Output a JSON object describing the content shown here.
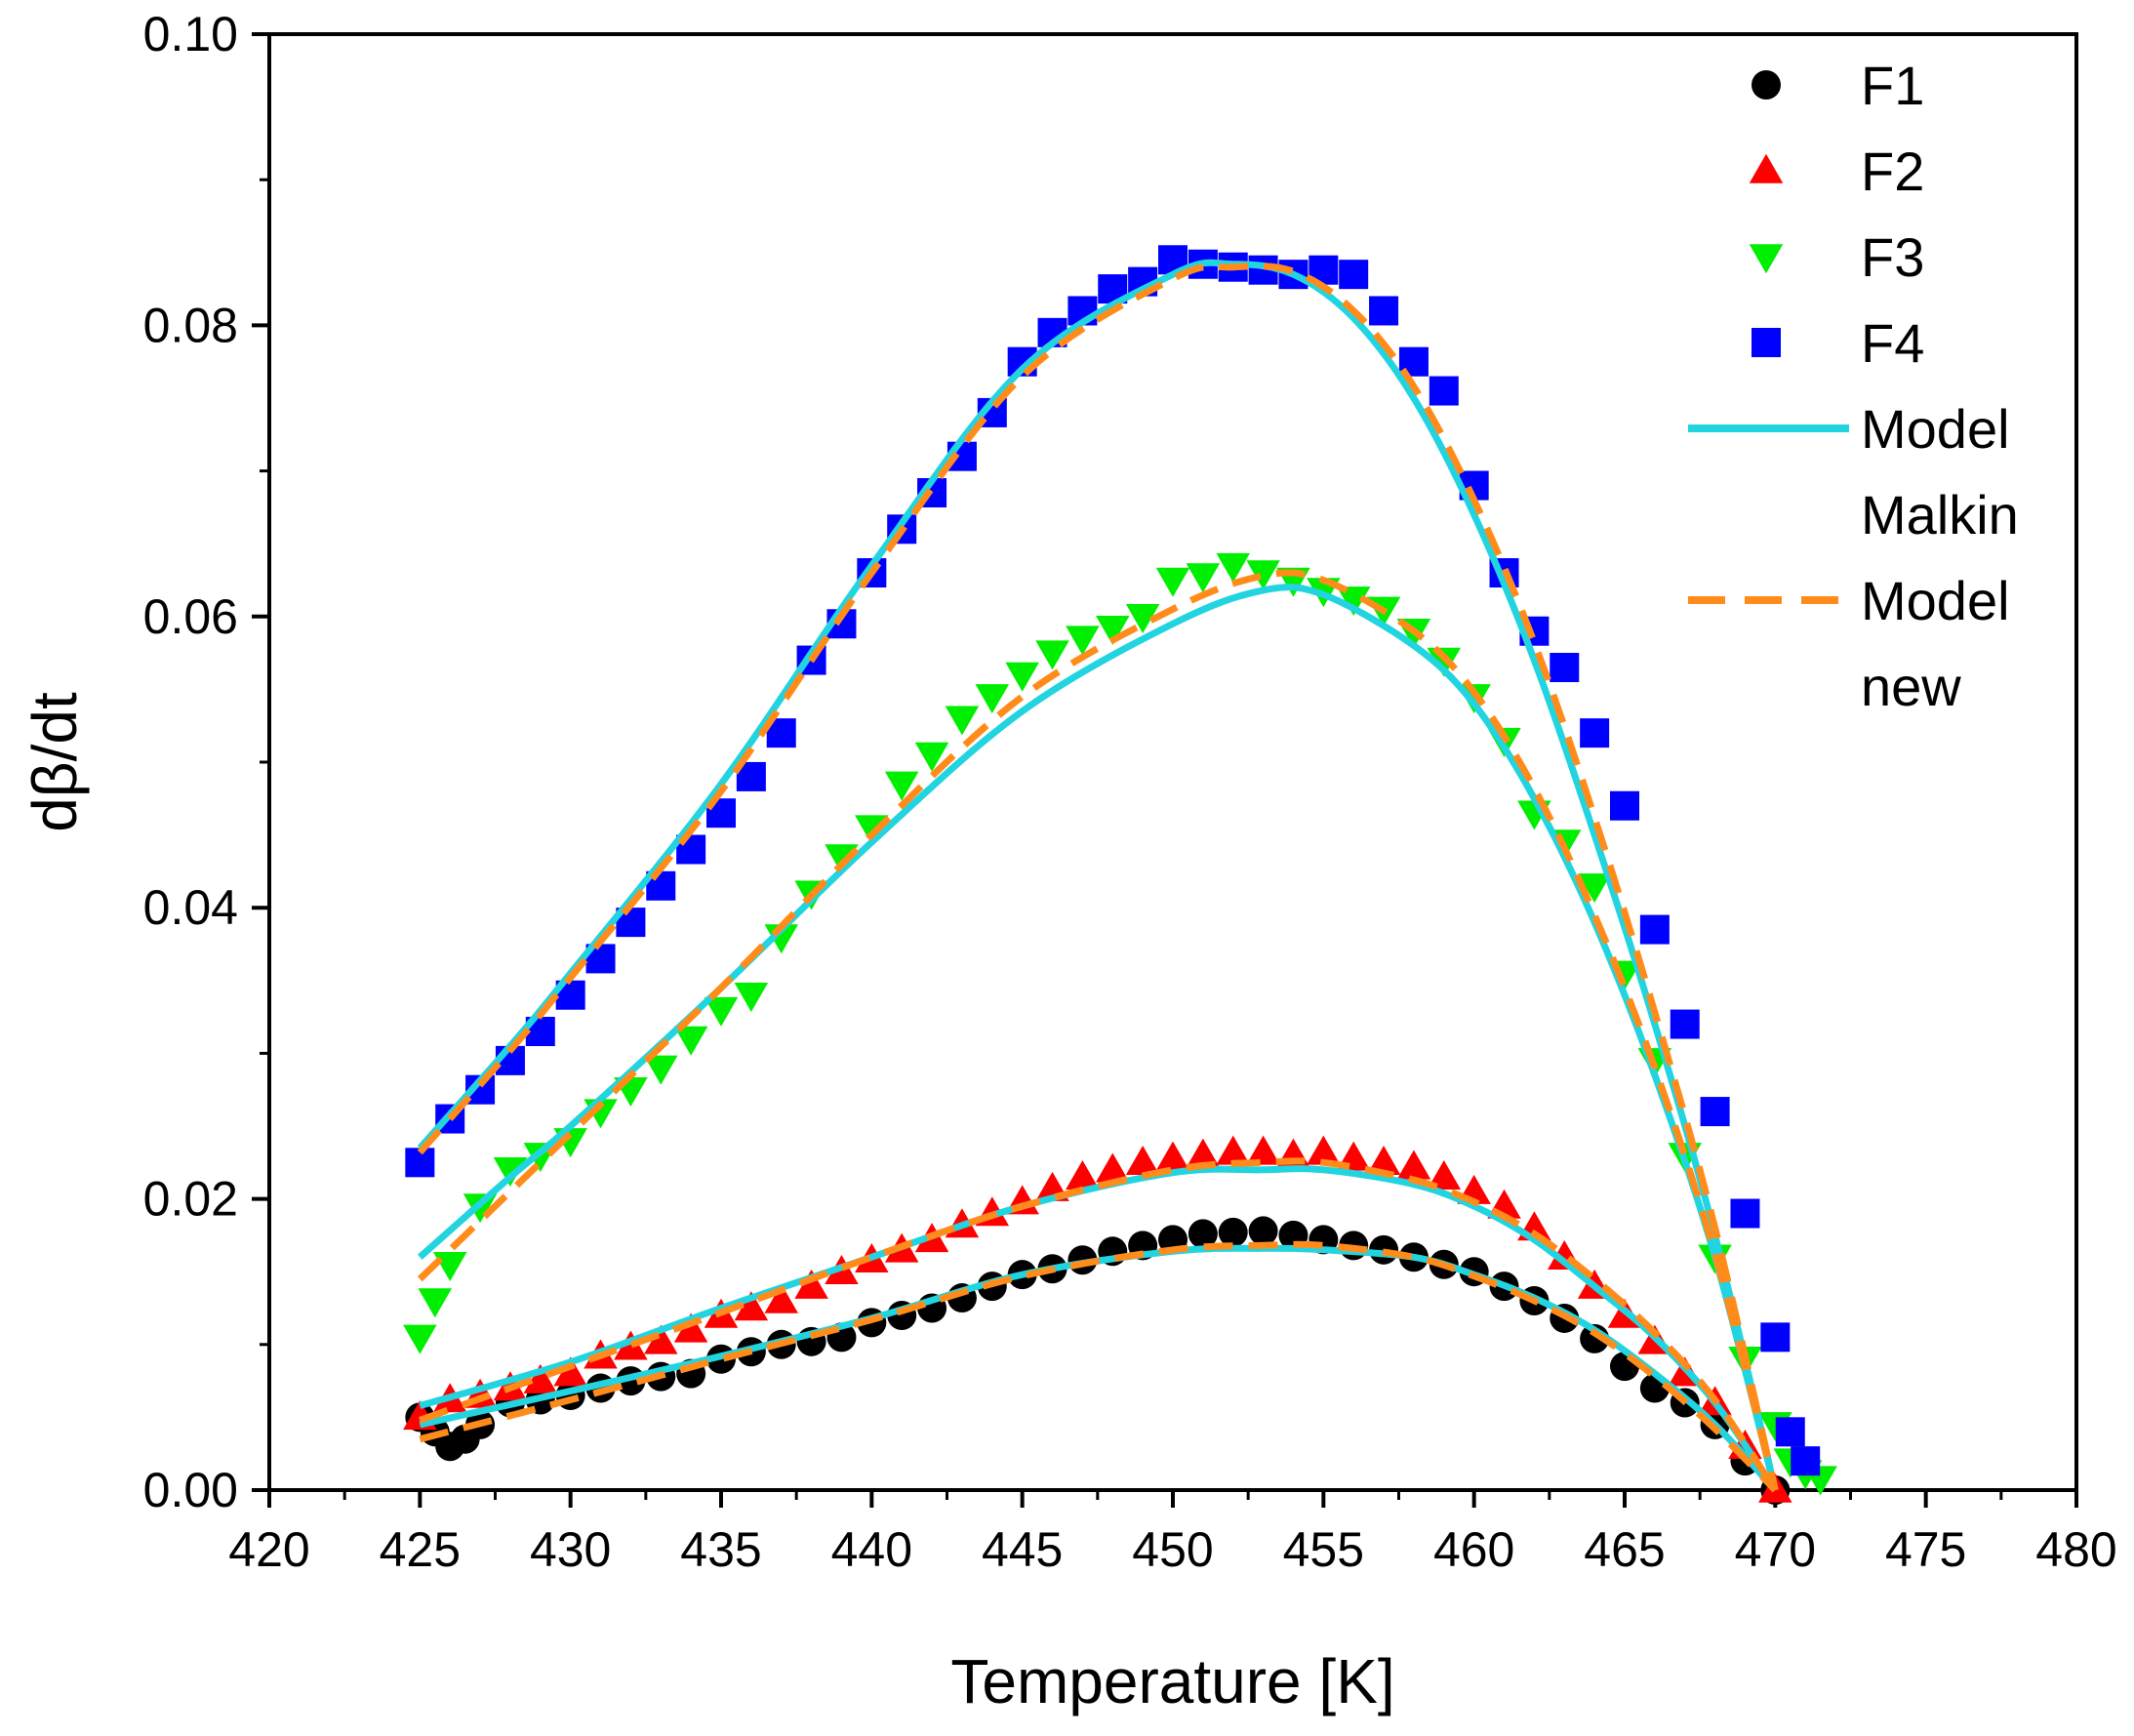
{
  "chart_data": {
    "type": "scatter",
    "title": "",
    "xlabel": "Temperature [K]",
    "ylabel": "dβ/dt",
    "xlim": [
      420,
      480
    ],
    "ylim": [
      0,
      0.1
    ],
    "x_ticks": [
      420,
      425,
      430,
      435,
      440,
      445,
      450,
      455,
      460,
      465,
      470,
      475,
      480
    ],
    "y_ticks": [
      0.0,
      0.02,
      0.04,
      0.06,
      0.08,
      0.1
    ],
    "x_tick_labels": [
      "420",
      "425",
      "430",
      "435",
      "440",
      "445",
      "450",
      "455",
      "460",
      "465",
      "470",
      "475",
      "480"
    ],
    "y_tick_labels": [
      "0.00",
      "0.02",
      "0.04",
      "0.06",
      "0.08",
      "0.10"
    ],
    "legend_position": "top-right",
    "legend": [
      {
        "label": "F1",
        "kind": "marker",
        "marker": "circle",
        "color": "#000000"
      },
      {
        "label": "F2",
        "kind": "marker",
        "marker": "triangle-up",
        "color": "#ff0000"
      },
      {
        "label": "F3",
        "kind": "marker",
        "marker": "triangle-down",
        "color": "#00ee00"
      },
      {
        "label": "F4",
        "kind": "marker",
        "marker": "square",
        "color": "#0000ff"
      },
      {
        "label_lines": [
          "Model",
          "Malkin"
        ],
        "kind": "line",
        "dash": "solid",
        "color": "#22d4e0"
      },
      {
        "label_lines": [
          "Model",
          "new"
        ],
        "kind": "line",
        "dash": "dashed",
        "color": "#ff8c1a"
      }
    ],
    "series": [
      {
        "name": "F1",
        "marker": "circle",
        "color": "#000000",
        "x": [
          425,
          425.5,
          426,
          426.5,
          427,
          428,
          429,
          430,
          431,
          432,
          433,
          434,
          435,
          436,
          437,
          438,
          439,
          440,
          441,
          442,
          443,
          444,
          445,
          446,
          447,
          448,
          449,
          450,
          451,
          452,
          453,
          454,
          455,
          456,
          457,
          458,
          459,
          460,
          461,
          462,
          463,
          464,
          465,
          466,
          467,
          468,
          469,
          470
        ],
        "y": [
          0.005,
          0.004,
          0.003,
          0.0035,
          0.0045,
          0.006,
          0.0062,
          0.0065,
          0.007,
          0.0075,
          0.0078,
          0.008,
          0.009,
          0.0095,
          0.01,
          0.0102,
          0.0105,
          0.0115,
          0.012,
          0.0125,
          0.0132,
          0.014,
          0.0148,
          0.0152,
          0.0158,
          0.0164,
          0.0168,
          0.0172,
          0.0176,
          0.0177,
          0.0178,
          0.0175,
          0.0172,
          0.0168,
          0.0165,
          0.016,
          0.0155,
          0.015,
          0.014,
          0.013,
          0.0118,
          0.0104,
          0.0085,
          0.007,
          0.006,
          0.0045,
          0.002,
          0.0
        ]
      },
      {
        "name": "F2",
        "marker": "triangle-up",
        "color": "#ff0000",
        "x": [
          425,
          426,
          427,
          428,
          429,
          430,
          431,
          432,
          433,
          434,
          435,
          436,
          437,
          438,
          439,
          440,
          441,
          442,
          443,
          444,
          445,
          446,
          447,
          448,
          449,
          450,
          451,
          452,
          453,
          454,
          455,
          456,
          457,
          458,
          459,
          460,
          461,
          462,
          463,
          464,
          465,
          466,
          467,
          468,
          469,
          470
        ],
        "y": [
          0.005,
          0.0062,
          0.0065,
          0.007,
          0.0075,
          0.008,
          0.0092,
          0.0098,
          0.0102,
          0.011,
          0.012,
          0.0125,
          0.013,
          0.014,
          0.015,
          0.0158,
          0.0165,
          0.0172,
          0.0182,
          0.019,
          0.0198,
          0.0207,
          0.0215,
          0.022,
          0.0225,
          0.0228,
          0.023,
          0.0232,
          0.0232,
          0.023,
          0.0232,
          0.0228,
          0.0225,
          0.0222,
          0.0215,
          0.0205,
          0.0195,
          0.018,
          0.016,
          0.014,
          0.012,
          0.0102,
          0.008,
          0.006,
          0.003,
          0.0
        ]
      },
      {
        "name": "F3",
        "marker": "triangle-down",
        "color": "#00ee00",
        "x": [
          425,
          425.5,
          426,
          427,
          428,
          429,
          430,
          431,
          432,
          433,
          434,
          435,
          436,
          437,
          438,
          439,
          440,
          441,
          442,
          443,
          444,
          445,
          446,
          447,
          448,
          449,
          450,
          451,
          452,
          453,
          454,
          455,
          456,
          457,
          458,
          459,
          460,
          461,
          462,
          463,
          464,
          465,
          466,
          467,
          468,
          469,
          470,
          470.5,
          471,
          471.5
        ],
        "y": [
          0.0105,
          0.013,
          0.0155,
          0.0195,
          0.022,
          0.023,
          0.024,
          0.026,
          0.0275,
          0.029,
          0.031,
          0.033,
          0.034,
          0.038,
          0.041,
          0.0435,
          0.0455,
          0.0485,
          0.0505,
          0.053,
          0.0545,
          0.056,
          0.0575,
          0.0585,
          0.0592,
          0.06,
          0.0625,
          0.0628,
          0.0635,
          0.063,
          0.0625,
          0.0618,
          0.0612,
          0.0605,
          0.059,
          0.057,
          0.0545,
          0.0515,
          0.0465,
          0.0445,
          0.0415,
          0.0355,
          0.0295,
          0.023,
          0.016,
          0.009,
          0.0045,
          0.002,
          0.0012,
          0.0008
        ]
      },
      {
        "name": "F4",
        "marker": "square",
        "color": "#0000ff",
        "x": [
          425,
          426,
          427,
          428,
          429,
          430,
          431,
          432,
          433,
          434,
          435,
          436,
          437,
          438,
          439,
          440,
          441,
          442,
          443,
          444,
          445,
          446,
          447,
          448,
          449,
          450,
          451,
          452,
          453,
          454,
          455,
          456,
          457,
          458,
          459,
          460,
          461,
          462,
          463,
          464,
          465,
          466,
          467,
          468,
          469,
          470,
          470.5,
          471
        ],
        "y": [
          0.0225,
          0.0255,
          0.0275,
          0.0295,
          0.0315,
          0.034,
          0.0365,
          0.039,
          0.0415,
          0.044,
          0.0465,
          0.049,
          0.052,
          0.057,
          0.0595,
          0.063,
          0.066,
          0.0685,
          0.071,
          0.074,
          0.0775,
          0.0795,
          0.081,
          0.0825,
          0.083,
          0.0845,
          0.0842,
          0.084,
          0.0838,
          0.0835,
          0.0838,
          0.0835,
          0.081,
          0.0775,
          0.0755,
          0.069,
          0.063,
          0.059,
          0.0565,
          0.052,
          0.047,
          0.0385,
          0.032,
          0.026,
          0.019,
          0.0105,
          0.004,
          0.002
        ]
      }
    ],
    "model_curves": [
      {
        "name": "Model Malkin",
        "style": "solid",
        "color": "#22d4e0",
        "curves": [
          {
            "for": "F1",
            "x": [
              425,
              430,
              435,
              440,
              445,
              450,
              453,
              455,
              458,
              460,
              462,
              464,
              466,
              468,
              470
            ],
            "y": [
              0.0045,
              0.0068,
              0.0092,
              0.0118,
              0.0148,
              0.0164,
              0.0166,
              0.0165,
              0.016,
              0.0148,
              0.0132,
              0.011,
              0.008,
              0.0045,
              0.0
            ]
          },
          {
            "for": "F2",
            "x": [
              425,
              430,
              435,
              440,
              445,
              450,
              453,
              455,
              458,
              460,
              462,
              464,
              466,
              468,
              470
            ],
            "y": [
              0.0058,
              0.0088,
              0.0125,
              0.016,
              0.0195,
              0.0218,
              0.022,
              0.022,
              0.021,
              0.0195,
              0.0172,
              0.014,
              0.0105,
              0.006,
              0.0
            ]
          },
          {
            "for": "F3",
            "x": [
              425,
              428,
              430,
              435,
              440,
              445,
              450,
              453,
              455,
              458,
              460,
              462,
              464,
              466,
              468,
              470
            ],
            "y": [
              0.016,
              0.0215,
              0.025,
              0.0345,
              0.0445,
              0.0535,
              0.0595,
              0.0618,
              0.0615,
              0.058,
              0.054,
              0.0475,
              0.039,
              0.0285,
              0.016,
              0.0
            ]
          },
          {
            "for": "F4",
            "x": [
              425,
              428,
              430,
              435,
              440,
              445,
              450,
              452,
              454,
              456,
              458,
              460,
              462,
              464,
              466,
              468,
              470
            ],
            "y": [
              0.0235,
              0.0305,
              0.0355,
              0.0485,
              0.0635,
              0.077,
              0.0835,
              0.0842,
              0.0835,
              0.0805,
              0.075,
              0.067,
              0.057,
              0.045,
              0.032,
              0.0175,
              0.0
            ]
          }
        ]
      },
      {
        "name": "Model new",
        "style": "dashed",
        "color": "#ff8c1a",
        "curves": [
          {
            "for": "F1",
            "x": [
              425,
              430,
              435,
              440,
              445,
              450,
              453,
              455,
              458,
              460,
              462,
              464,
              466,
              468,
              470
            ],
            "y": [
              0.0035,
              0.0062,
              0.009,
              0.0117,
              0.0147,
              0.0165,
              0.0168,
              0.0168,
              0.016,
              0.0147,
              0.013,
              0.0108,
              0.0078,
              0.0042,
              0.0
            ]
          },
          {
            "for": "F2",
            "x": [
              425,
              430,
              435,
              440,
              445,
              450,
              453,
              455,
              458,
              460,
              462,
              464,
              466,
              468,
              470
            ],
            "y": [
              0.0048,
              0.0085,
              0.0122,
              0.016,
              0.0195,
              0.022,
              0.0225,
              0.0225,
              0.0213,
              0.0198,
              0.0176,
              0.0145,
              0.0108,
              0.0062,
              0.0
            ]
          },
          {
            "for": "F3",
            "x": [
              425,
              428,
              430,
              435,
              440,
              445,
              450,
              453,
              455,
              458,
              460,
              462,
              464,
              466,
              468,
              470
            ],
            "y": [
              0.0145,
              0.0205,
              0.0245,
              0.0345,
              0.045,
              0.0545,
              0.0605,
              0.0628,
              0.0625,
              0.059,
              0.0548,
              0.0482,
              0.0395,
              0.029,
              0.0162,
              0.0
            ]
          },
          {
            "for": "F4",
            "x": [
              425,
              428,
              430,
              435,
              440,
              445,
              450,
              452,
              454,
              456,
              458,
              460,
              462,
              464,
              466,
              468,
              470
            ],
            "y": [
              0.0232,
              0.0302,
              0.0352,
              0.048,
              0.063,
              0.0765,
              0.0832,
              0.084,
              0.0837,
              0.081,
              0.0758,
              0.068,
              0.0582,
              0.0462,
              0.0328,
              0.018,
              0.0
            ]
          }
        ]
      }
    ]
  }
}
